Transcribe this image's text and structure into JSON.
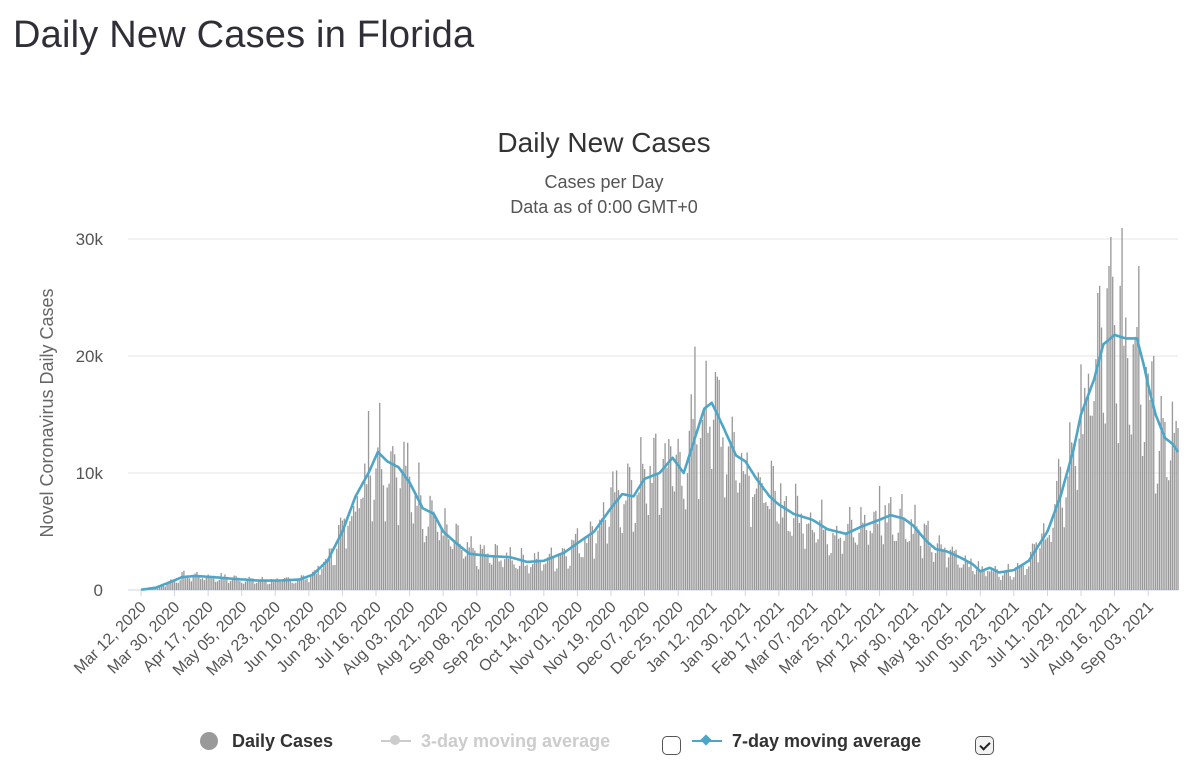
{
  "page": {
    "title": "Daily New Cases in Florida"
  },
  "legend": {
    "daily": "Daily Cases",
    "ma3": "3-day moving average",
    "ma7": "7-day moving average",
    "ma3_checked": false,
    "ma7_checked": true
  },
  "colors": {
    "bars": "#999999",
    "line": "#4da6c7",
    "ma3_disabled": "#cccccc",
    "grid": "#e6e6e6"
  },
  "chart_data": {
    "type": "bar",
    "title": "Daily New Cases",
    "subtitle": [
      "Cases per Day",
      "Data as of 0:00 GMT+0"
    ],
    "ylabel": "Novel Coronavirus Daily Cases",
    "xlabel": "",
    "ylim": [
      0,
      30000
    ],
    "yticks": [
      0,
      10000,
      20000,
      30000
    ],
    "ytick_labels": [
      "0",
      "10k",
      "20k",
      "30k"
    ],
    "x_start": "2020-03-12",
    "x_end": "2021-09-19",
    "x_tick_labels": [
      "Mar 12, 2020",
      "Mar 30, 2020",
      "Apr 17, 2020",
      "May 05, 2020",
      "May 23, 2020",
      "Jun 10, 2020",
      "Jun 28, 2020",
      "Jul 16, 2020",
      "Aug 03, 2020",
      "Aug 21, 2020",
      "Sep 08, 2020",
      "Sep 26, 2020",
      "Oct 14, 2020",
      "Nov 01, 2020",
      "Nov 19, 2020",
      "Dec 07, 2020",
      "Dec 25, 2020",
      "Jan 12, 2021",
      "Jan 30, 2021",
      "Feb 17, 2021",
      "Mar 07, 2021",
      "Mar 25, 2021",
      "Apr 12, 2021",
      "Apr 30, 2021",
      "May 18, 2021",
      "Jun 05, 2021",
      "Jun 23, 2021",
      "Jul 11, 2021",
      "Jul 29, 2021",
      "Aug 16, 2021",
      "Sep 03, 2021"
    ],
    "grid": true,
    "legend_position": "bottom",
    "series": [
      {
        "name": "7-day moving average",
        "type": "line",
        "points": [
          [
            "2020-03-12",
            20
          ],
          [
            "2020-03-20",
            200
          ],
          [
            "2020-03-28",
            700
          ],
          [
            "2020-04-03",
            1100
          ],
          [
            "2020-04-10",
            1200
          ],
          [
            "2020-04-20",
            1100
          ],
          [
            "2020-05-01",
            950
          ],
          [
            "2020-05-15",
            800
          ],
          [
            "2020-05-25",
            800
          ],
          [
            "2020-06-05",
            900
          ],
          [
            "2020-06-12",
            1300
          ],
          [
            "2020-06-20",
            2500
          ],
          [
            "2020-06-28",
            5000
          ],
          [
            "2020-07-05",
            8000
          ],
          [
            "2020-07-12",
            10000
          ],
          [
            "2020-07-17",
            11800
          ],
          [
            "2020-07-22",
            11000
          ],
          [
            "2020-07-28",
            10500
          ],
          [
            "2020-08-03",
            9200
          ],
          [
            "2020-08-10",
            7000
          ],
          [
            "2020-08-16",
            6500
          ],
          [
            "2020-08-21",
            5000
          ],
          [
            "2020-08-28",
            4000
          ],
          [
            "2020-09-04",
            3100
          ],
          [
            "2020-09-15",
            2900
          ],
          [
            "2020-09-26",
            2800
          ],
          [
            "2020-10-05",
            2400
          ],
          [
            "2020-10-14",
            2500
          ],
          [
            "2020-10-25",
            3200
          ],
          [
            "2020-11-01",
            4000
          ],
          [
            "2020-11-10",
            5000
          ],
          [
            "2020-11-19",
            7000
          ],
          [
            "2020-11-25",
            8200
          ],
          [
            "2020-12-01",
            8000
          ],
          [
            "2020-12-07",
            9500
          ],
          [
            "2020-12-15",
            10000
          ],
          [
            "2020-12-22",
            11300
          ],
          [
            "2020-12-28",
            10000
          ],
          [
            "2021-01-03",
            13000
          ],
          [
            "2021-01-08",
            15500
          ],
          [
            "2021-01-12",
            16000
          ],
          [
            "2021-01-18",
            14000
          ],
          [
            "2021-01-25",
            11500
          ],
          [
            "2021-01-30",
            11000
          ],
          [
            "2021-02-05",
            9500
          ],
          [
            "2021-02-12",
            8000
          ],
          [
            "2021-02-17",
            7300
          ],
          [
            "2021-02-25",
            6500
          ],
          [
            "2021-03-07",
            6000
          ],
          [
            "2021-03-15",
            5200
          ],
          [
            "2021-03-25",
            4800
          ],
          [
            "2021-04-02",
            5400
          ],
          [
            "2021-04-12",
            6000
          ],
          [
            "2021-04-18",
            6400
          ],
          [
            "2021-04-25",
            6100
          ],
          [
            "2021-04-30",
            5500
          ],
          [
            "2021-05-07",
            4200
          ],
          [
            "2021-05-12",
            3500
          ],
          [
            "2021-05-18",
            3300
          ],
          [
            "2021-05-25",
            2800
          ],
          [
            "2021-06-01",
            2200
          ],
          [
            "2021-06-05",
            1600
          ],
          [
            "2021-06-10",
            1900
          ],
          [
            "2021-06-15",
            1500
          ],
          [
            "2021-06-23",
            1700
          ],
          [
            "2021-07-01",
            2500
          ],
          [
            "2021-07-07",
            4000
          ],
          [
            "2021-07-11",
            5000
          ],
          [
            "2021-07-18",
            8000
          ],
          [
            "2021-07-25",
            12000
          ],
          [
            "2021-07-29",
            15000
          ],
          [
            "2021-08-05",
            18000
          ],
          [
            "2021-08-10",
            21000
          ],
          [
            "2021-08-16",
            21800
          ],
          [
            "2021-08-22",
            21500
          ],
          [
            "2021-08-28",
            21500
          ],
          [
            "2021-09-01",
            19000
          ],
          [
            "2021-09-03",
            17500
          ],
          [
            "2021-09-07",
            15000
          ],
          [
            "2021-09-12",
            13000
          ],
          [
            "2021-09-16",
            12500
          ],
          [
            "2021-09-19",
            11800
          ]
        ]
      },
      {
        "name": "Daily Cases",
        "type": "bar",
        "spikes": [
          [
            "2020-07-12",
            15300
          ],
          [
            "2020-07-25",
            12300
          ],
          [
            "2020-08-09",
            8100
          ],
          [
            "2020-11-29",
            10500
          ],
          [
            "2020-12-20",
            12900
          ],
          [
            "2021-01-03",
            20800
          ],
          [
            "2021-01-09",
            19600
          ],
          [
            "2021-04-12",
            8900
          ],
          [
            "2021-08-08",
            26000
          ],
          [
            "2021-08-29",
            27700
          ],
          [
            "2021-09-06",
            20000
          ]
        ]
      }
    ]
  }
}
